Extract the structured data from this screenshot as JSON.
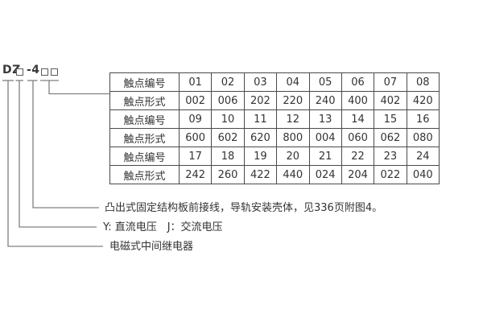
{
  "model": {
    "prefix": "DZ",
    "middle": "-4"
  },
  "table": {
    "rows": [
      {
        "label": "触点编号",
        "values": [
          "01",
          "02",
          "03",
          "04",
          "05",
          "06",
          "07",
          "08"
        ]
      },
      {
        "label": "触点形式",
        "values": [
          "002",
          "006",
          "202",
          "220",
          "240",
          "400",
          "402",
          "420"
        ]
      },
      {
        "label": "触点编号",
        "values": [
          "09",
          "10",
          "11",
          "12",
          "13",
          "14",
          "15",
          "16"
        ]
      },
      {
        "label": "触点形式",
        "values": [
          "600",
          "602",
          "620",
          "800",
          "004",
          "060",
          "062",
          "080"
        ]
      },
      {
        "label": "触点编号",
        "values": [
          "17",
          "18",
          "19",
          "20",
          "21",
          "22",
          "23",
          "24"
        ]
      },
      {
        "label": "触点形式",
        "values": [
          "242",
          "260",
          "422",
          "440",
          "024",
          "204",
          "022",
          "040"
        ]
      }
    ]
  },
  "annotations": [
    {
      "text": "凸出式固定结构板前接线，导轨安装壳体，见336页附图4。"
    },
    {
      "text": "Y: 直流电压　J：交流电压"
    },
    {
      "text": "电磁式中间继电器"
    }
  ],
  "colors": {
    "background": "#ffffff",
    "text": "#333333",
    "table_border": "#4a4a4a",
    "connector_line": "#808080"
  }
}
